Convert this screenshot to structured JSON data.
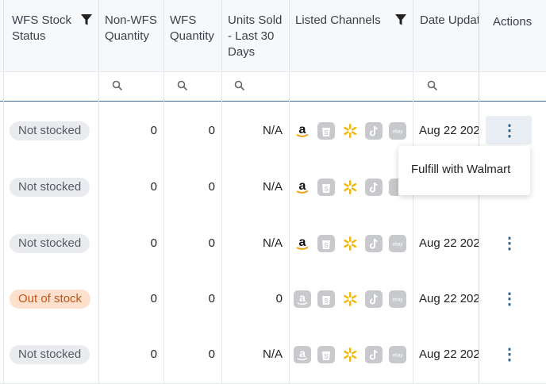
{
  "columns": {
    "wfs_stock_status": "WFS Stock Status",
    "non_wfs_quantity": "Non-WFS Quantity",
    "wfs_quantity": "WFS Quantity",
    "units_sold": "Units Sold - Last 30 Days",
    "listed_channels": "Listed Channels",
    "date_updated": "Date Updat",
    "actions": "Actions"
  },
  "rows": [
    {
      "status": "Not stocked",
      "status_kind": "neutral",
      "non_wfs": "0",
      "wfs": "0",
      "units": "N/A",
      "amazon_active": true,
      "date": "Aug 22 202"
    },
    {
      "status": "Not stocked",
      "status_kind": "neutral",
      "non_wfs": "0",
      "wfs": "0",
      "units": "N/A",
      "amazon_active": true,
      "date": "Aug 22 202"
    },
    {
      "status": "Not stocked",
      "status_kind": "neutral",
      "non_wfs": "0",
      "wfs": "0",
      "units": "N/A",
      "amazon_active": true,
      "date": "Aug 22 202"
    },
    {
      "status": "Out of stock",
      "status_kind": "warning",
      "non_wfs": "0",
      "wfs": "0",
      "units": "0",
      "amazon_active": false,
      "date": "Aug 22 202"
    },
    {
      "status": "Not stocked",
      "status_kind": "neutral",
      "non_wfs": "0",
      "wfs": "0",
      "units": "N/A",
      "amazon_active": false,
      "date": "Aug 22 202"
    }
  ],
  "channel_icons": [
    "amazon-icon",
    "shopify-icon",
    "walmart-icon",
    "tiktok-icon",
    "ebay-icon"
  ],
  "ebay_label": "ebay",
  "menu": {
    "fulfill_label": "Fulfill with Walmart"
  },
  "colors": {
    "selected_border": "#3d6b96",
    "kebab": "#2d5f8a",
    "walmart_spark": "#f2b705",
    "oos_badge": "#fde1cc"
  }
}
